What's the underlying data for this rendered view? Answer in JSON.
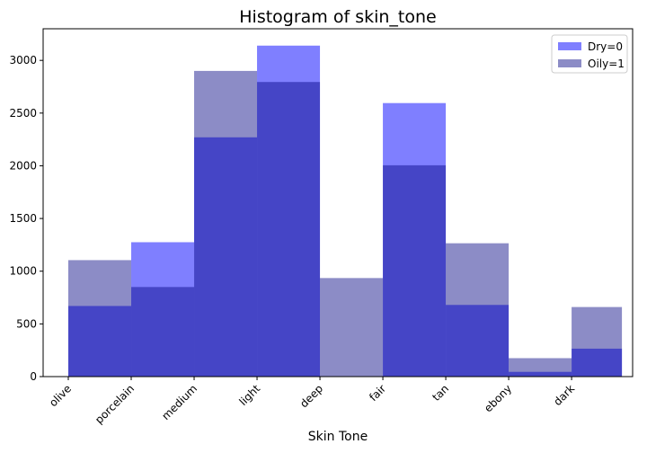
{
  "chart_data": {
    "type": "bar",
    "title": "Histogram of skin_tone",
    "xlabel": "Skin Tone",
    "ylabel": "",
    "categories": [
      "olive",
      "porcelain",
      "medium",
      "light",
      "deep",
      "fair",
      "tan",
      "ebony",
      "dark"
    ],
    "series": [
      {
        "name": "Dry=0",
        "color": "#0000ff",
        "opacity": 0.5,
        "values": [
          670,
          1275,
          2270,
          3140,
          0,
          2595,
          680,
          45,
          265
        ]
      },
      {
        "name": "Oily=1",
        "color": "#000080",
        "opacity": 0.45,
        "values": [
          1105,
          850,
          2900,
          2795,
          935,
          2005,
          1265,
          175,
          660
        ]
      }
    ],
    "bins": [
      {
        "start": 0,
        "end": 1
      },
      {
        "start": 1,
        "end": 2
      },
      {
        "start": 2,
        "end": 3
      },
      {
        "start": 3,
        "end": 4
      },
      {
        "start": 4,
        "end": 5
      },
      {
        "start": 5,
        "end": 6
      },
      {
        "start": 6,
        "end": 7
      },
      {
        "start": 7,
        "end": 8
      },
      {
        "start": 8,
        "end": 8.8
      }
    ],
    "xlim": [
      -0.4,
      8.97
    ],
    "ylim": [
      0,
      3300
    ],
    "yticks": [
      0,
      500,
      1000,
      1500,
      2000,
      2500,
      3000
    ],
    "legend": "top-right",
    "grid": false
  }
}
